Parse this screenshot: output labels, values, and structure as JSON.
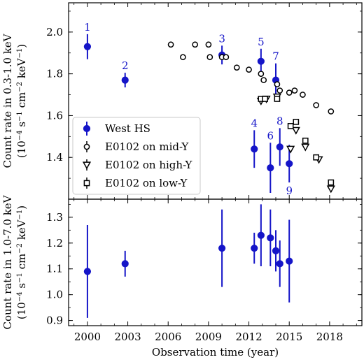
{
  "chart_data": [
    {
      "type": "scatter",
      "panel": "top",
      "ylabel_line1": "Count rate in 0.3-1.0 keV",
      "ylabel_line2_parts": [
        "(10",
        "−4",
        " s",
        "−1",
        " cm",
        "−2",
        " keV",
        "−1",
        ")"
      ],
      "xlim": [
        1998.6,
        2020.4
      ],
      "ylim": [
        1.2,
        2.14
      ],
      "yticks": [
        1.4,
        1.6,
        1.8,
        2.0
      ],
      "ytick_labels": [
        "1.4",
        "1.6",
        "1.8",
        "2.0"
      ],
      "legend_position": "lower-left",
      "series": [
        {
          "name": "West HS",
          "marker": "filled-circle",
          "color": "#1515c8",
          "points": [
            {
              "x": 2000.0,
              "y": 1.93,
              "yerr": 0.06,
              "label": "1"
            },
            {
              "x": 2002.8,
              "y": 1.77,
              "yerr": 0.035,
              "label": "2"
            },
            {
              "x": 2010.0,
              "y": 1.89,
              "yerr": 0.045,
              "label": "3"
            },
            {
              "x": 2012.4,
              "y": 1.44,
              "yerr": 0.09,
              "label": "4"
            },
            {
              "x": 2012.9,
              "y": 1.86,
              "yerr": 0.06,
              "label": "5"
            },
            {
              "x": 2013.6,
              "y": 1.35,
              "yerr": 0.12,
              "label": "6"
            },
            {
              "x": 2014.0,
              "y": 1.77,
              "yerr": 0.08,
              "label": "7"
            },
            {
              "x": 2014.3,
              "y": 1.45,
              "yerr": 0.09,
              "label": "8"
            },
            {
              "x": 2015.0,
              "y": 1.37,
              "yerr": 0.09,
              "label": "9"
            }
          ]
        },
        {
          "name": "E0102 on mid-Y",
          "marker": "open-circle",
          "color": "#000000",
          "points": [
            {
              "x": 2006.2,
              "y": 1.94
            },
            {
              "x": 2007.1,
              "y": 1.88
            },
            {
              "x": 2008.0,
              "y": 1.94
            },
            {
              "x": 2009.0,
              "y": 1.94
            },
            {
              "x": 2009.1,
              "y": 1.88
            },
            {
              "x": 2010.0,
              "y": 1.88
            },
            {
              "x": 2010.3,
              "y": 1.88
            },
            {
              "x": 2011.1,
              "y": 1.83
            },
            {
              "x": 2012.0,
              "y": 1.82
            },
            {
              "x": 2012.9,
              "y": 1.8
            },
            {
              "x": 2013.1,
              "y": 1.77
            },
            {
              "x": 2014.1,
              "y": 1.75
            },
            {
              "x": 2014.3,
              "y": 1.72
            },
            {
              "x": 2015.0,
              "y": 1.71
            },
            {
              "x": 2015.4,
              "y": 1.72
            },
            {
              "x": 2016.0,
              "y": 1.7
            },
            {
              "x": 2017.0,
              "y": 1.65
            },
            {
              "x": 2018.1,
              "y": 1.62
            }
          ]
        },
        {
          "name": "E0102 on high-Y",
          "marker": "open-triangle-down",
          "color": "#000000",
          "points": [
            {
              "x": 2012.9,
              "y": 1.67
            },
            {
              "x": 2013.3,
              "y": 1.68
            },
            {
              "x": 2014.1,
              "y": 1.69
            },
            {
              "x": 2015.1,
              "y": 1.44
            },
            {
              "x": 2015.5,
              "y": 1.53
            },
            {
              "x": 2016.2,
              "y": 1.45
            },
            {
              "x": 2017.2,
              "y": 1.39
            },
            {
              "x": 2018.1,
              "y": 1.25
            }
          ]
        },
        {
          "name": "E0102 on low-Y",
          "marker": "open-square",
          "color": "#000000",
          "points": [
            {
              "x": 2012.9,
              "y": 1.68
            },
            {
              "x": 2013.2,
              "y": 1.68
            },
            {
              "x": 2014.1,
              "y": 1.68
            },
            {
              "x": 2015.1,
              "y": 1.55
            },
            {
              "x": 2015.5,
              "y": 1.57
            },
            {
              "x": 2016.2,
              "y": 1.48
            },
            {
              "x": 2017.0,
              "y": 1.4
            },
            {
              "x": 2018.1,
              "y": 1.28
            }
          ]
        }
      ]
    },
    {
      "type": "scatter",
      "panel": "bottom",
      "xlabel": "Observation time (year)",
      "ylabel_line1": "Count rate in 1.0-7.0 keV",
      "ylabel_line2_parts": [
        "(10",
        "−4",
        " s",
        "−1",
        " cm",
        "−2",
        " keV",
        "−1",
        ")"
      ],
      "xlim": [
        1998.6,
        2020.4
      ],
      "ylim": [
        0.88,
        1.37
      ],
      "xticks": [
        2000,
        2003,
        2006,
        2009,
        2012,
        2015,
        2018
      ],
      "xtick_labels": [
        "2000",
        "2003",
        "2006",
        "2009",
        "2012",
        "2015",
        "2018"
      ],
      "yticks": [
        0.9,
        1.0,
        1.1,
        1.2,
        1.3
      ],
      "ytick_labels": [
        "0.9",
        "1.0",
        "1.1",
        "1.2",
        "1.3"
      ],
      "series": [
        {
          "name": "West HS",
          "marker": "filled-circle",
          "color": "#1515c8",
          "points": [
            {
              "x": 2000.0,
              "y": 1.09,
              "yerr": 0.18
            },
            {
              "x": 2002.8,
              "y": 1.12,
              "yerr": 0.05
            },
            {
              "x": 2010.0,
              "y": 1.18,
              "yerr": 0.15
            },
            {
              "x": 2012.4,
              "y": 1.18,
              "yerr": 0.06
            },
            {
              "x": 2012.9,
              "y": 1.23,
              "yerr": 0.12
            },
            {
              "x": 2013.6,
              "y": 1.22,
              "yerr": 0.11
            },
            {
              "x": 2014.0,
              "y": 1.17,
              "yerr": 0.08
            },
            {
              "x": 2014.3,
              "y": 1.12,
              "yerr": 0.09
            },
            {
              "x": 2015.0,
              "y": 1.13,
              "yerr": 0.16
            }
          ]
        }
      ]
    }
  ]
}
